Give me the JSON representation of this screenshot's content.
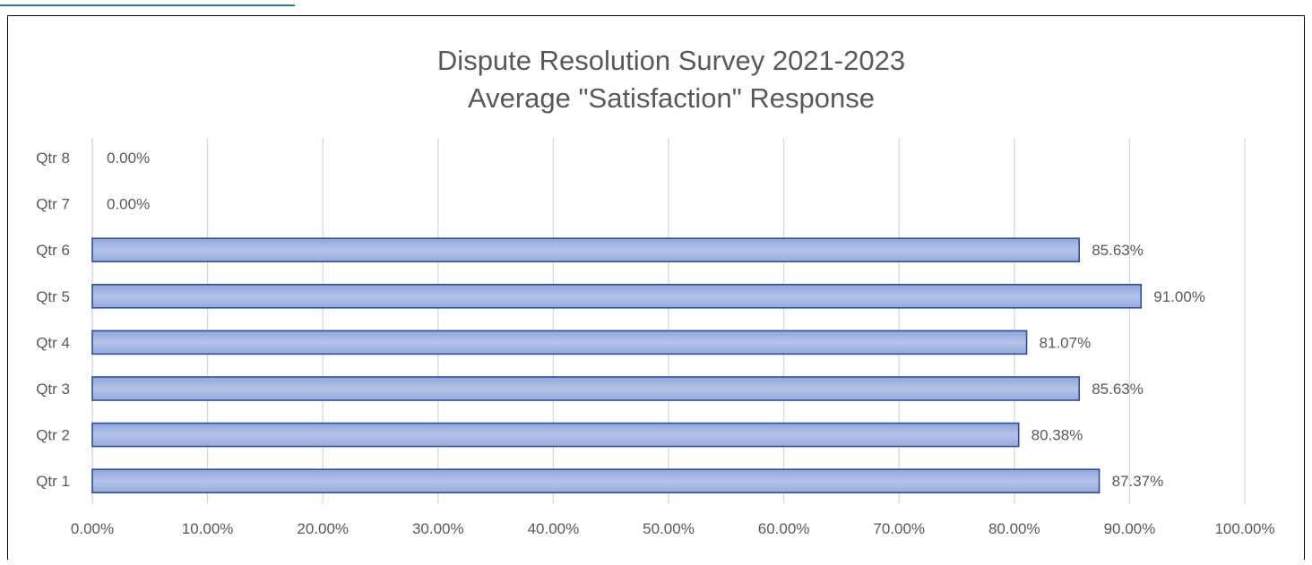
{
  "chart_data": {
    "type": "bar",
    "orientation": "horizontal",
    "title": "Dispute Resolution Survey 2021-2023",
    "subtitle": "Average \"Satisfaction\" Response",
    "categories": [
      "Qtr 1",
      "Qtr 2",
      "Qtr 3",
      "Qtr 4",
      "Qtr 5",
      "Qtr 6",
      "Qtr 7",
      "Qtr 8"
    ],
    "values": [
      87.37,
      80.38,
      85.63,
      81.07,
      91.0,
      85.63,
      0.0,
      0.0
    ],
    "data_labels": [
      "87.37%",
      "80.38%",
      "85.63%",
      "81.07%",
      "91.00%",
      "85.63%",
      "0.00%",
      "0.00%"
    ],
    "xlim": [
      0,
      100
    ],
    "x_ticks": [
      0,
      10,
      20,
      30,
      40,
      50,
      60,
      70,
      80,
      90,
      100
    ],
    "x_tick_labels": [
      "0.00%",
      "10.00%",
      "20.00%",
      "30.00%",
      "40.00%",
      "50.00%",
      "60.00%",
      "70.00%",
      "80.00%",
      "90.00%",
      "100.00%"
    ],
    "xlabel": "",
    "ylabel": "",
    "grid": true,
    "legend": "none",
    "colors": {
      "bar_fill_top": "#8fa6dc",
      "bar_fill_mid": "#b4c3e8",
      "bar_fill_bottom": "#95abdc",
      "bar_stroke": "#2f4f99",
      "text": "#595959",
      "grid": "#d9d9d9",
      "link_underline": "#2e75b6"
    }
  }
}
